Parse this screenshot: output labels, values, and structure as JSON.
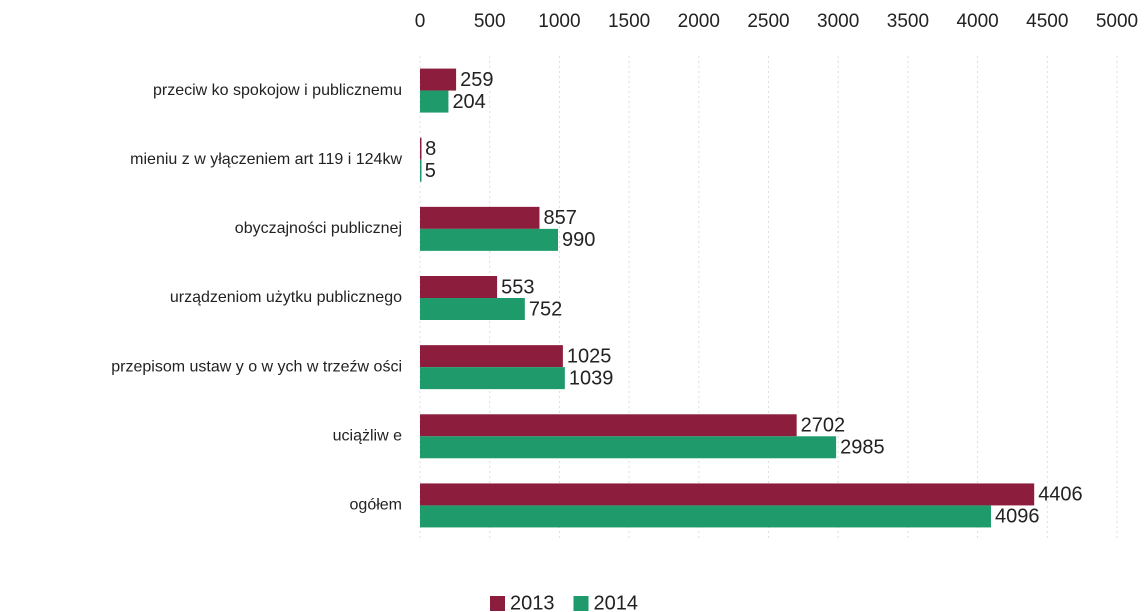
{
  "chart_data": {
    "type": "barh",
    "categories": [
      "przeciw ko spokojow i publicznemu",
      "mieniu z w yłączeniem art 119 i 124kw",
      "obyczajności publicznej",
      "urządzeniom użytku publicznego",
      "przepisom ustaw y o w ych w  trzeźw ości",
      "uciążliw e",
      "ogółem"
    ],
    "series": [
      {
        "name": "2013",
        "color": "#8c1d3d",
        "values": [
          259,
          8,
          857,
          553,
          1025,
          2702,
          4406
        ]
      },
      {
        "name": "2014",
        "color": "#1e9a6b",
        "values": [
          204,
          5,
          990,
          752,
          1039,
          2985,
          4096
        ]
      }
    ],
    "xlim": [
      0,
      5000
    ],
    "xticks": [
      0,
      500,
      1000,
      1500,
      2000,
      2500,
      3000,
      3500,
      4000,
      4500,
      5000
    ],
    "grid": true,
    "legend": "bottom"
  }
}
